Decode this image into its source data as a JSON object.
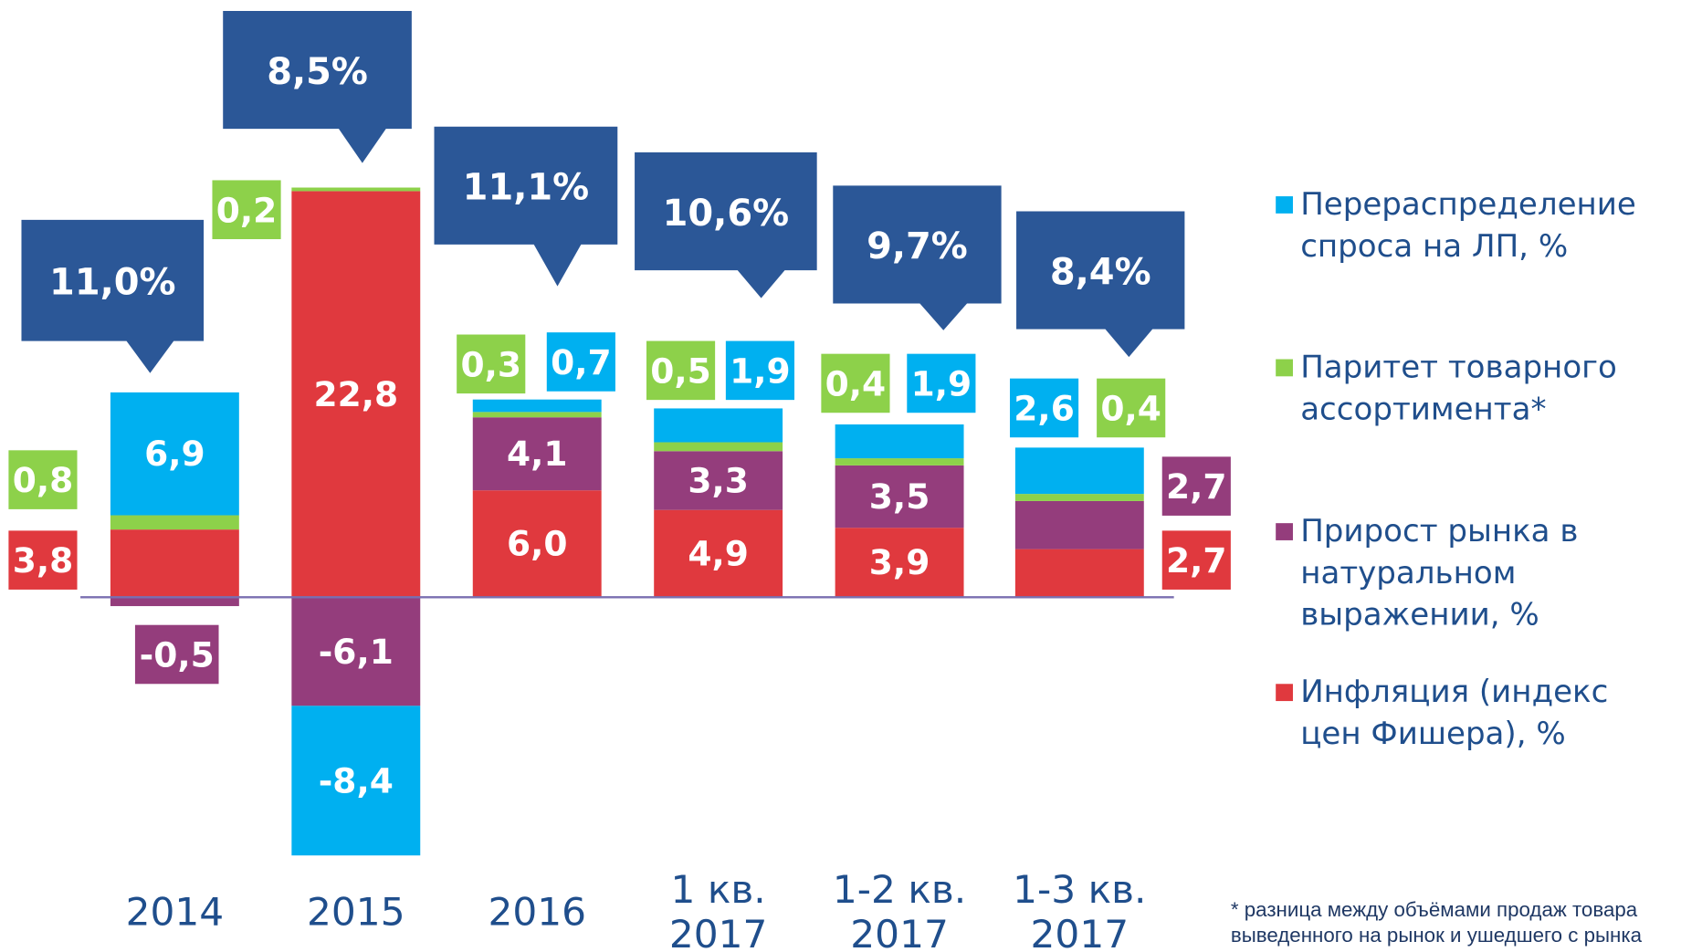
{
  "chart_data": {
    "type": "stacked-bar",
    "categories": [
      "2014",
      "2015",
      "2016",
      "1 кв. 2017",
      "1-2 кв. 2017",
      "1-3 кв. 2017"
    ],
    "series": [
      {
        "name": "Инфляция (индекс цен Фишера), %",
        "color": "#e0393e",
        "values": [
          3.8,
          22.8,
          6.0,
          4.9,
          3.9,
          2.7
        ],
        "value_labels": [
          "3,8",
          "22,8",
          "6,0",
          "4,9",
          "3,9",
          "2,7"
        ]
      },
      {
        "name": "Прирост рынка в натуральном выражении, %",
        "color": "#943d7c",
        "values": [
          -0.5,
          -6.1,
          4.1,
          3.3,
          3.5,
          2.7
        ],
        "value_labels": [
          "-0,5",
          "-6,1",
          "4,1",
          "3,3",
          "3,5",
          "2,7"
        ]
      },
      {
        "name": "Паритет товарного ассортимента*",
        "color": "#8dd14a",
        "values": [
          0.8,
          0.2,
          0.3,
          0.5,
          0.4,
          0.4
        ],
        "value_labels": [
          "0,8",
          "0,2",
          "0,3",
          "0,5",
          "0,4",
          "0,4"
        ]
      },
      {
        "name": "Перераспределение спроса на ЛП, %",
        "color": "#00b0f0",
        "values": [
          6.9,
          -8.4,
          0.7,
          1.9,
          1.9,
          2.6
        ],
        "value_labels": [
          "6,9",
          "-8,4",
          "0,7",
          "1,9",
          "1,9",
          "2,6"
        ]
      }
    ],
    "totals": {
      "color": "#2b5797",
      "values": [
        11.0,
        8.5,
        11.1,
        10.6,
        9.7,
        8.4
      ],
      "value_labels": [
        "11,0%",
        "8,5%",
        "11,1%",
        "10,6%",
        "9,7%",
        "8,4%"
      ]
    },
    "ylim": [
      -16,
      26
    ],
    "footnote": "* разница между объёмами продаж товара выведенного на рынок и ушедшего с рынка"
  }
}
